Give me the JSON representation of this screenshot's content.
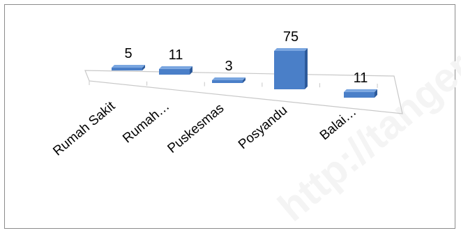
{
  "chart_data": {
    "type": "bar",
    "categories": [
      "Rumah Sakit",
      "Rumah…",
      "Puskesmas",
      "Posyandu",
      "Balai…"
    ],
    "values": [
      5,
      11,
      3,
      75,
      11
    ],
    "data_labels": [
      "5",
      "11",
      "3",
      "75",
      "11"
    ],
    "title": "",
    "xlabel": "",
    "ylabel": "",
    "grid": false,
    "legend": "none",
    "style": "3d-perspective"
  },
  "colors": {
    "bar_front": "#4a7fc8",
    "bar_side": "#2d5a9a",
    "bar_top": "#7aa6e0",
    "floor_line": "#c8c8c8"
  },
  "watermark": {
    "text": "http://tanger"
  }
}
